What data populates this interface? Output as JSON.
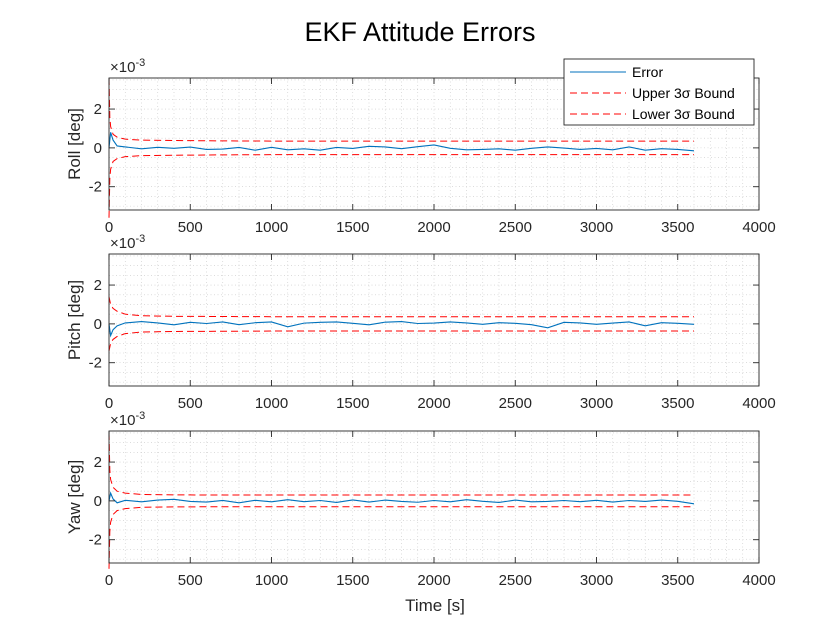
{
  "chart_data": {
    "type": "line",
    "title": "EKF Attitude Errors",
    "xlabel": "Time [s]",
    "xlim": [
      0,
      4000
    ],
    "x_ticks": [
      "0",
      "500",
      "1000",
      "1500",
      "2000",
      "2500",
      "3000",
      "3500",
      "4000"
    ],
    "exponent_label": "×10^-3",
    "exponent_base": "×10",
    "exponent_power": "-3",
    "grid": true,
    "minor_grid": true,
    "legend": {
      "placement": "top-right",
      "entries": [
        "Error",
        "Upper 3σ Bound",
        "Lower 3σ Bound"
      ]
    },
    "colors": {
      "error": "#0072BD",
      "bound": "#FF0000"
    },
    "panels": [
      {
        "ylabel": "Roll [deg]",
        "ylim": [
          -0.0032,
          0.0036
        ],
        "y_ticks": [
          "-2",
          "0",
          "2"
        ],
        "y_tick_values": [
          -0.002,
          0,
          0.002
        ],
        "series": [
          {
            "name": "Error",
            "x": [
              0,
              10,
              25,
              50,
              100,
              200,
              300,
              400,
              500,
              600,
              700,
              800,
              900,
              1000,
              1100,
              1200,
              1300,
              1400,
              1500,
              1600,
              1700,
              1800,
              1900,
              2000,
              2100,
              2200,
              2300,
              2400,
              2500,
              2600,
              2700,
              2800,
              2900,
              3000,
              3100,
              3200,
              3300,
              3400,
              3500,
              3600
            ],
            "y": [
              0,
              0.0008,
              0.0004,
              0.0001,
              5e-05,
              -5e-05,
              3e-05,
              -2e-05,
              4e-05,
              -8e-05,
              -6e-05,
              2e-05,
              -0.00012,
              3e-05,
              -0.0001,
              -5e-05,
              -0.00012,
              2e-05,
              -3e-05,
              8e-05,
              5e-05,
              -4e-05,
              6e-05,
              0.00015,
              -2e-05,
              -0.0001,
              -8e-05,
              -5e-05,
              -0.00012,
              -2e-05,
              5e-05,
              -1e-05,
              -8e-05,
              -3e-05,
              -0.0001,
              5e-05,
              -0.00012,
              -4e-05,
              -8e-05,
              -0.00015
            ]
          },
          {
            "name": "Upper 3σ Bound",
            "x": [
              0,
              5,
              10,
              25,
              50,
              100,
              200,
              400,
              700,
              1000,
              2000,
              3000,
              3600
            ],
            "y": [
              0.0036,
              0.0016,
              0.0011,
              0.0007,
              0.00055,
              0.00045,
              0.0004,
              0.00038,
              0.00036,
              0.00035,
              0.00035,
              0.00035,
              0.00035
            ]
          },
          {
            "name": "Lower 3σ Bound",
            "x": [
              0,
              5,
              10,
              25,
              50,
              100,
              200,
              400,
              700,
              1000,
              2000,
              3000,
              3600
            ],
            "y": [
              -0.0036,
              -0.0016,
              -0.0011,
              -0.0007,
              -0.00055,
              -0.00045,
              -0.0004,
              -0.00038,
              -0.00036,
              -0.00035,
              -0.00035,
              -0.00035,
              -0.00035
            ]
          }
        ]
      },
      {
        "ylabel": "Pitch [deg]",
        "ylim": [
          -0.0032,
          0.0036
        ],
        "y_ticks": [
          "-2",
          "0",
          "2"
        ],
        "y_tick_values": [
          -0.002,
          0,
          0.002
        ],
        "series": [
          {
            "name": "Error",
            "x": [
              0,
              10,
              25,
              50,
              100,
              200,
              300,
              400,
              500,
              600,
              700,
              800,
              900,
              1000,
              1100,
              1200,
              1300,
              1400,
              1500,
              1600,
              1700,
              1800,
              1900,
              2000,
              2100,
              2200,
              2300,
              2400,
              2500,
              2600,
              2700,
              2800,
              2900,
              3000,
              3100,
              3200,
              3300,
              3400,
              3500,
              3600
            ],
            "y": [
              0,
              -0.0006,
              -0.0003,
              -0.0001,
              5e-05,
              0.00012,
              5e-05,
              -5e-05,
              8e-05,
              2e-05,
              0.0001,
              -4e-05,
              6e-05,
              0.0001,
              -0.00015,
              4e-05,
              8e-05,
              0.0001,
              3e-05,
              -5e-05,
              9e-05,
              0.00012,
              2e-05,
              4e-05,
              0.0001,
              5e-05,
              -2e-05,
              6e-05,
              3e-05,
              -4e-05,
              -0.0002,
              8e-05,
              5e-05,
              -2e-05,
              4e-05,
              0.0001,
              -0.0001,
              6e-05,
              3e-05,
              -2e-05
            ]
          },
          {
            "name": "Upper 3σ Bound",
            "x": [
              0,
              5,
              10,
              25,
              50,
              100,
              200,
              400,
              700,
              1000,
              2000,
              3000,
              3600
            ],
            "y": [
              0.0014,
              0.0012,
              0.001,
              0.0008,
              0.00065,
              0.0005,
              0.00042,
              0.00039,
              0.00038,
              0.00037,
              0.00037,
              0.00037,
              0.00037
            ]
          },
          {
            "name": "Lower 3σ Bound",
            "x": [
              0,
              5,
              10,
              25,
              50,
              100,
              200,
              400,
              700,
              1000,
              2000,
              3000,
              3600
            ],
            "y": [
              -0.0014,
              -0.0012,
              -0.001,
              -0.0008,
              -0.00065,
              -0.0005,
              -0.00042,
              -0.00039,
              -0.00038,
              -0.00037,
              -0.00037,
              -0.00037,
              -0.00037
            ]
          }
        ]
      },
      {
        "ylabel": "Yaw [deg]",
        "ylim": [
          -0.0032,
          0.0036
        ],
        "y_ticks": [
          "-2",
          "0",
          "2"
        ],
        "y_tick_values": [
          -0.002,
          0,
          0.002
        ],
        "series": [
          {
            "name": "Error",
            "x": [
              0,
              10,
              25,
              50,
              100,
              200,
              300,
              400,
              500,
              600,
              700,
              800,
              900,
              1000,
              1100,
              1200,
              1300,
              1400,
              1500,
              1600,
              1700,
              1800,
              1900,
              2000,
              2100,
              2200,
              2300,
              2400,
              2500,
              2600,
              2700,
              2800,
              2900,
              3000,
              3100,
              3200,
              3300,
              3400,
              3500,
              3600
            ],
            "y": [
              0,
              0.0004,
              0.0001,
              -0.0001,
              3e-05,
              -5e-05,
              4e-05,
              8e-05,
              -3e-05,
              -6e-05,
              2e-05,
              -0.0001,
              3e-05,
              -5e-05,
              6e-05,
              -4e-05,
              2e-05,
              -8e-05,
              5e-05,
              -6e-05,
              4e-05,
              -3e-05,
              -7e-05,
              2e-05,
              -5e-05,
              6e-05,
              -2e-05,
              -8e-05,
              4e-05,
              -5e-05,
              -3e-05,
              2e-05,
              -4e-05,
              3e-05,
              -6e-05,
              2e-05,
              -3e-05,
              4e-05,
              -2e-05,
              -0.00015
            ]
          },
          {
            "name": "Upper 3σ Bound",
            "x": [
              0,
              5,
              10,
              25,
              50,
              100,
              200,
              400,
              700,
              1000,
              2000,
              3000,
              3600
            ],
            "y": [
              0.0035,
              0.0016,
              0.0011,
              0.0007,
              0.0005,
              0.0004,
              0.00033,
              0.00031,
              0.0003,
              0.0003,
              0.0003,
              0.0003,
              0.0003
            ]
          },
          {
            "name": "Lower 3σ Bound",
            "x": [
              0,
              5,
              10,
              25,
              50,
              100,
              200,
              400,
              700,
              1000,
              2000,
              3000,
              3600
            ],
            "y": [
              -0.0035,
              -0.0016,
              -0.0011,
              -0.0007,
              -0.0005,
              -0.0004,
              -0.00033,
              -0.00031,
              -0.0003,
              -0.0003,
              -0.0003,
              -0.0003,
              -0.0003
            ]
          }
        ]
      }
    ]
  }
}
